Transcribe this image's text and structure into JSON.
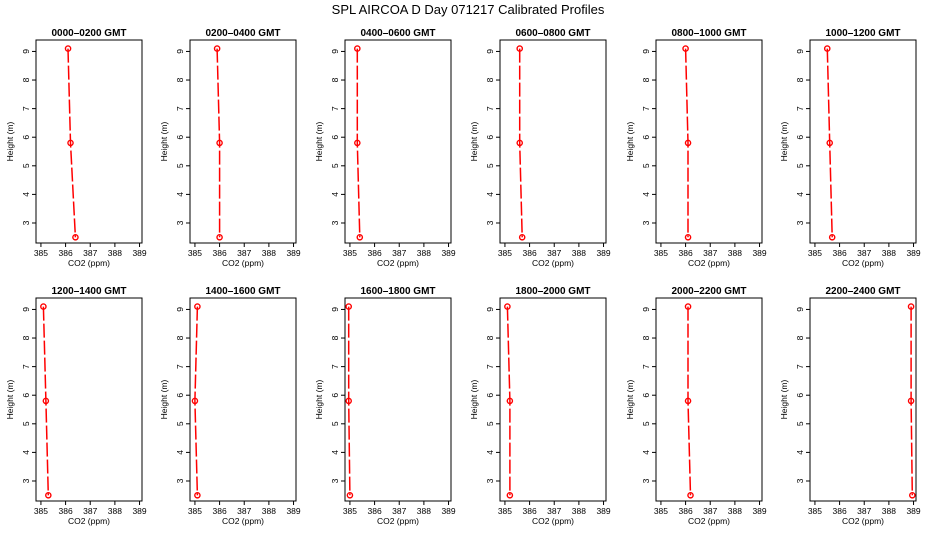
{
  "title": "SPL AIRCOA D  Day 071217  Calibrated Profiles",
  "chart_data": {
    "type": "line",
    "xlabel": "CO2 (ppm)",
    "ylabel": "Height (m)",
    "xlim": [
      384.8,
      389.1
    ],
    "ylim": [
      2.3,
      9.4
    ],
    "x_ticks": [
      "385",
      "386",
      "387",
      "388",
      "389"
    ],
    "y_ticks": [
      "3",
      "4",
      "5",
      "6",
      "7",
      "8",
      "9"
    ],
    "heights": [
      9.1,
      5.8,
      2.5
    ],
    "line_color": "#ff0000",
    "marker_color": "#ff0000",
    "grid": false,
    "panels": [
      {
        "title": "0000–0200 GMT",
        "x": [
          386.1,
          386.2,
          386.4
        ]
      },
      {
        "title": "0200–0400 GMT",
        "x": [
          385.9,
          386.0,
          386.0
        ]
      },
      {
        "title": "0400–0600 GMT",
        "x": [
          385.3,
          385.3,
          385.4
        ]
      },
      {
        "title": "0600–0800 GMT",
        "x": [
          385.6,
          385.6,
          385.7
        ]
      },
      {
        "title": "0800–1000 GMT",
        "x": [
          386.0,
          386.1,
          386.1
        ]
      },
      {
        "title": "1000–1200 GMT",
        "x": [
          385.5,
          385.6,
          385.7
        ]
      },
      {
        "title": "1200–1400 GMT",
        "x": [
          385.1,
          385.2,
          385.3
        ]
      },
      {
        "title": "1400–1600 GMT",
        "x": [
          385.1,
          385.0,
          385.1
        ]
      },
      {
        "title": "1600–1800 GMT",
        "x": [
          384.95,
          384.95,
          385.0
        ]
      },
      {
        "title": "1800–2000 GMT",
        "x": [
          385.1,
          385.2,
          385.2
        ]
      },
      {
        "title": "2000–2200 GMT",
        "x": [
          386.1,
          386.1,
          386.2
        ]
      },
      {
        "title": "2200–2400 GMT",
        "x": [
          388.9,
          388.9,
          388.95
        ]
      }
    ]
  }
}
